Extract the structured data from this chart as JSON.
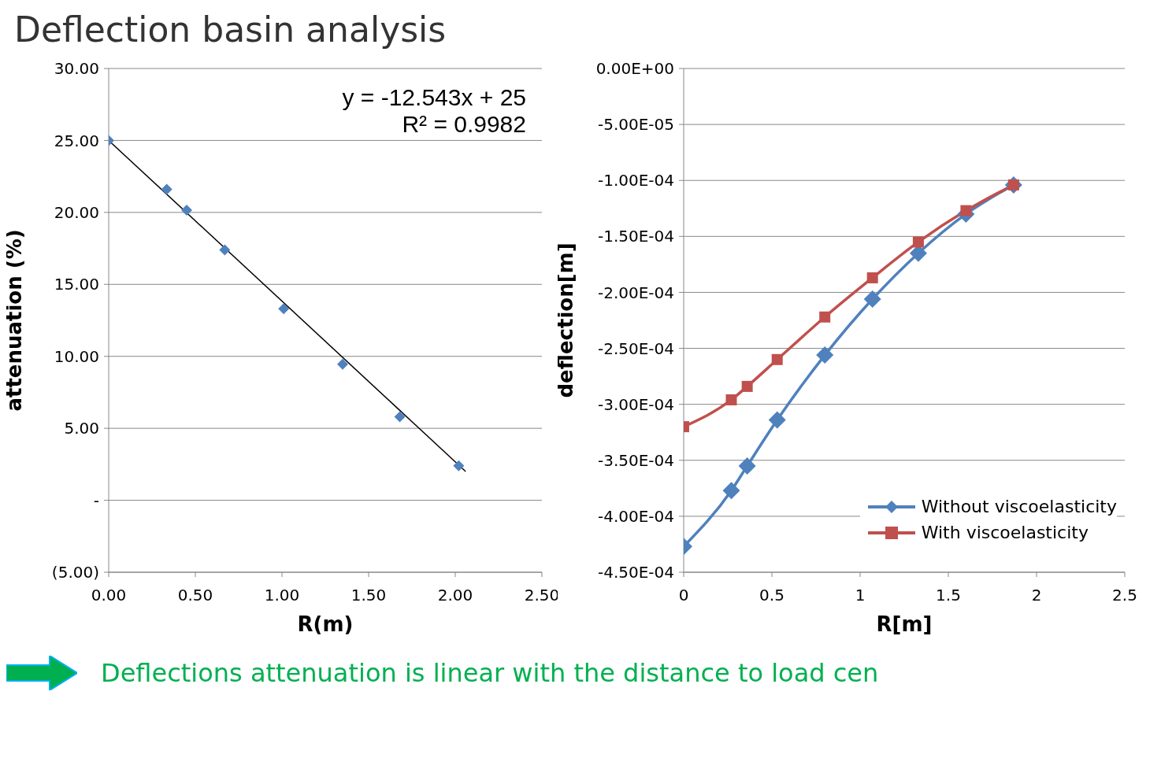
{
  "chart_data": [
    {
      "type": "scatter",
      "title": "Deflection basin analysis",
      "xlabel": "R(m)",
      "ylabel": "attenuation (%)",
      "annotations": [
        "y = -12.543x + 25",
        "R² = 0.9982"
      ],
      "marker": "diamond",
      "grid": "y",
      "x": [
        0,
        0.335,
        0.45,
        0.67,
        1.01,
        1.35,
        1.68,
        2.02
      ],
      "xlim": [
        0,
        2.5
      ],
      "xticks": [
        {
          "value": 0,
          "label": "0.00"
        },
        {
          "value": 0.5,
          "label": "0.50"
        },
        {
          "value": 1,
          "label": "1.00"
        },
        {
          "value": 1.5,
          "label": "1.50"
        },
        {
          "value": 2,
          "label": "2.00"
        },
        {
          "value": 2.5,
          "label": "2.50"
        }
      ],
      "ylim": [
        -5,
        30
      ],
      "yticks": [
        {
          "value": -5,
          "label": "(5.00)"
        },
        {
          "value": 0,
          "label": "-"
        },
        {
          "value": 5,
          "label": "5.00"
        },
        {
          "value": 10,
          "label": "10.00"
        },
        {
          "value": 15,
          "label": "15.00"
        },
        {
          "value": 20,
          "label": "20.00"
        },
        {
          "value": 25,
          "label": "25.00"
        },
        {
          "value": 30,
          "label": "30.00"
        }
      ],
      "series": [
        {
          "color": "#4f81bd",
          "values": [
            25,
            21.6,
            20.15,
            17.4,
            13.3,
            9.45,
            5.8,
            2.4
          ]
        },
        {
          "type": "line",
          "marker": "none",
          "line_style": "solid",
          "color": "#000000",
          "x": [
            0,
            2.06
          ],
          "values": [
            25,
            2.0
          ]
        }
      ]
    },
    {
      "type": "line",
      "xlabel": "R[m]",
      "ylabel": "deflection[m]",
      "annotations": [
        "Deflections attenuation is linear with the distance to load cen"
      ],
      "grid": "y",
      "legend": "bottom right",
      "line_style": "solid",
      "x": [
        0,
        0.27,
        0.36,
        0.53,
        0.8,
        1.07,
        1.33,
        1.6,
        1.87
      ],
      "xlim": [
        0,
        2.5
      ],
      "xticks": [
        0,
        0.5,
        1,
        1.5,
        2,
        2.5
      ],
      "ylim": [
        -0.00045,
        0
      ],
      "yticks": [
        {
          "value": -0.00045,
          "label": "-4.50E-04"
        },
        {
          "value": -0.0004,
          "label": "-4.00E-04"
        },
        {
          "value": -0.00035,
          "label": "-3.50E-04"
        },
        {
          "value": -0.0003,
          "label": "-3.00E-04"
        },
        {
          "value": -0.00025,
          "label": "-2.50E-04"
        },
        {
          "value": -0.0002,
          "label": "-2.00E-04"
        },
        {
          "value": -0.00015,
          "label": "-1.50E-04"
        },
        {
          "value": -0.0001,
          "label": "-1.00E-04"
        },
        {
          "value": -5e-05,
          "label": "-5.00E-05"
        },
        {
          "value": 0,
          "label": "0.00E+00"
        }
      ],
      "series": [
        {
          "name": "Without viscoelasticity",
          "marker": "diamond",
          "color": "#4f81bd",
          "values": [
            -0.000427,
            -0.000377,
            -0.000355,
            -0.000314,
            -0.000256,
            -0.000206,
            -0.000165,
            -0.00013,
            -0.000104
          ]
        },
        {
          "name": "With viscoelasticity",
          "marker": "square",
          "color": "#c0504d",
          "values": [
            -0.00032,
            -0.000296,
            -0.000284,
            -0.00026,
            -0.000222,
            -0.000187,
            -0.000155,
            -0.000127,
            -0.000104
          ]
        }
      ]
    }
  ]
}
